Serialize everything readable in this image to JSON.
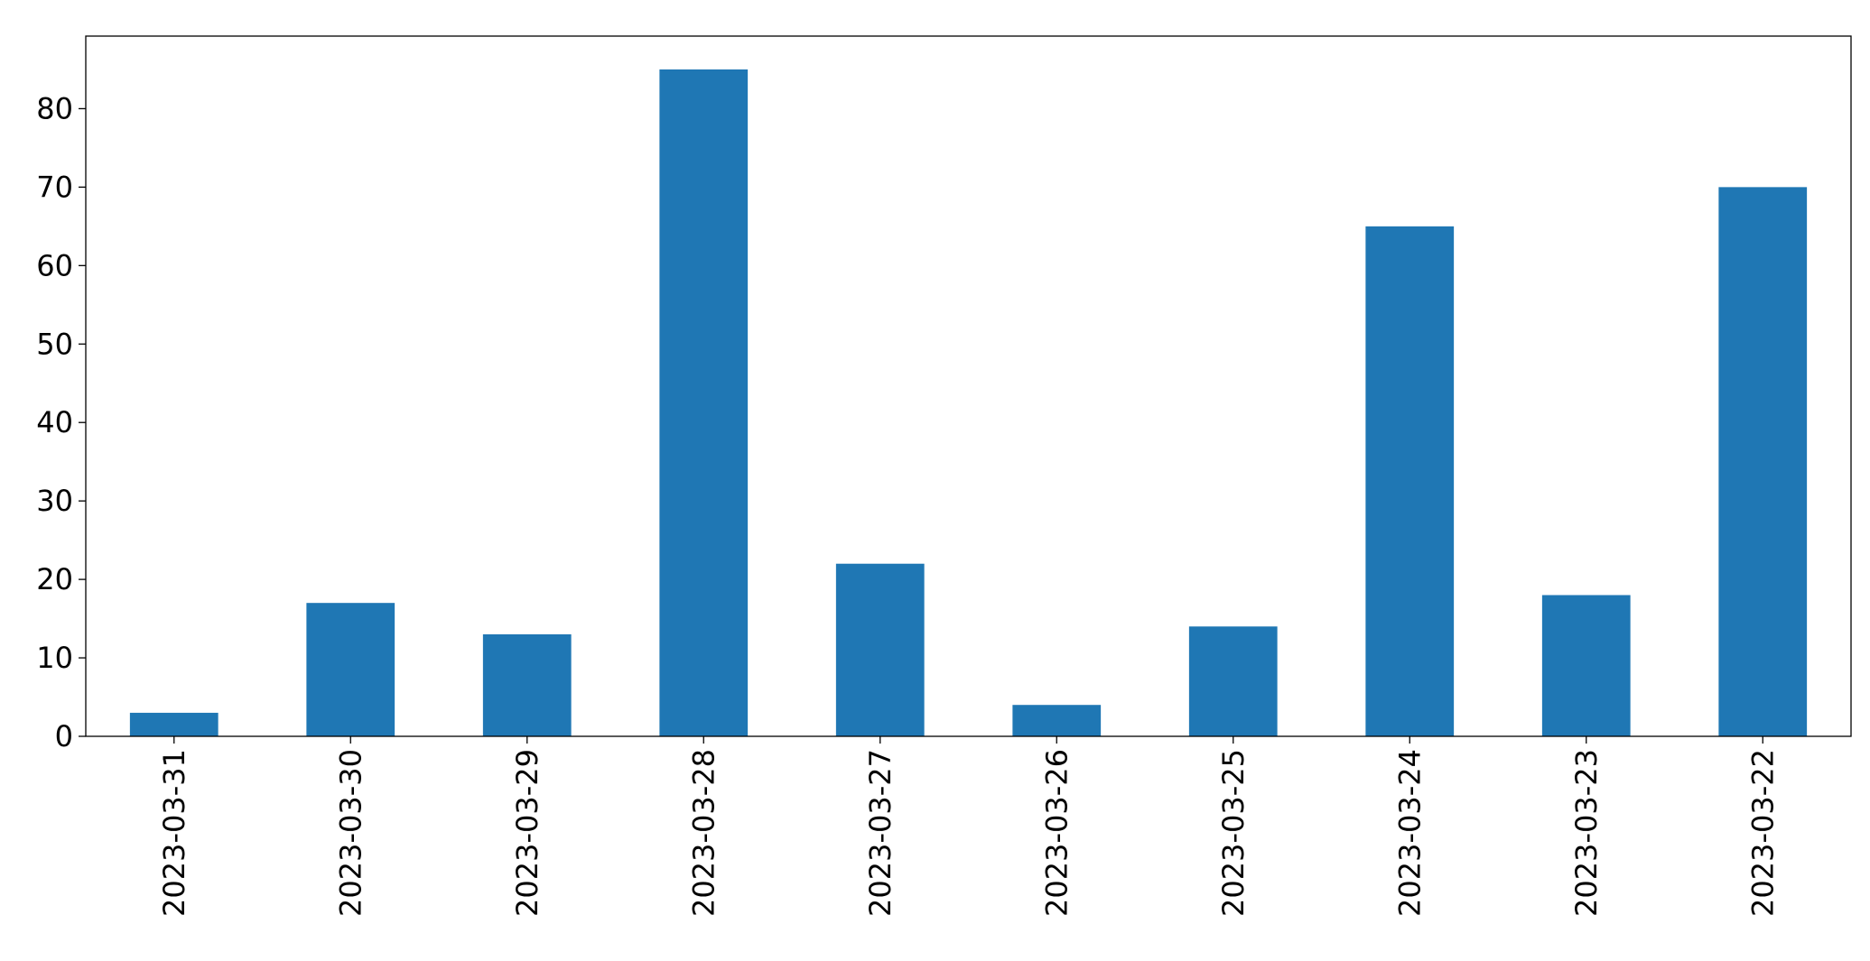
{
  "chart_data": {
    "type": "bar",
    "title": "",
    "xlabel": "",
    "ylabel": "",
    "categories": [
      "2023-03-31",
      "2023-03-30",
      "2023-03-29",
      "2023-03-28",
      "2023-03-27",
      "2023-03-26",
      "2023-03-25",
      "2023-03-24",
      "2023-03-23",
      "2023-03-22"
    ],
    "values": [
      3,
      17,
      13,
      85,
      22,
      4,
      14,
      65,
      18,
      70
    ],
    "ylim": [
      0,
      89.25
    ],
    "yticks": [
      0,
      10,
      20,
      30,
      40,
      50,
      60,
      70,
      80
    ],
    "ytick_labels": [
      "0",
      "10",
      "20",
      "30",
      "40",
      "50",
      "60",
      "70",
      "80"
    ],
    "grid": false,
    "legend": "none",
    "bar_color": "#1f77b4"
  }
}
